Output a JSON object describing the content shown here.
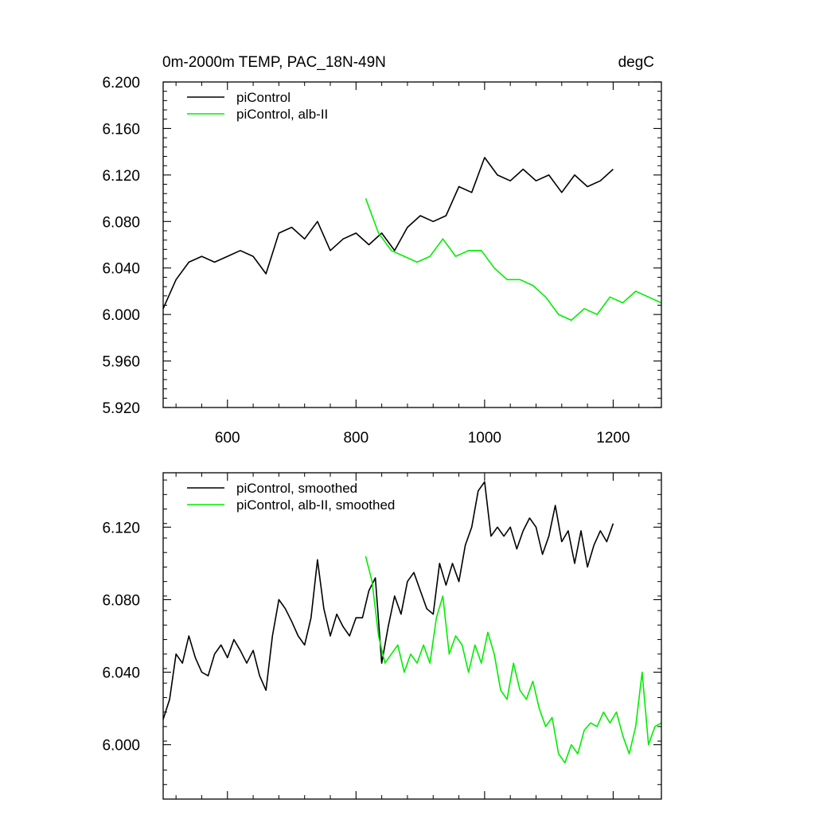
{
  "chart_data": [
    {
      "type": "line",
      "title_left": "0m-2000m TEMP, PAC_18N-49N",
      "title_right": "degC",
      "xlabel": "",
      "ylabel": "",
      "xlim": [
        500,
        1275
      ],
      "ylim": [
        5.92,
        6.2
      ],
      "xticks": [
        600,
        800,
        1000,
        1200
      ],
      "xtick_labels": [
        "600",
        "800",
        "1000",
        "1200"
      ],
      "yticks": [
        5.92,
        5.96,
        6.0,
        6.04,
        6.08,
        6.12,
        6.16,
        6.2
      ],
      "ytick_labels": [
        "5.920",
        "5.960",
        "6.000",
        "6.040",
        "6.080",
        "6.120",
        "6.160",
        "6.200"
      ],
      "grid": false,
      "legend_position": "top-left",
      "series": [
        {
          "name": "piControl",
          "color": "#000000",
          "x": [
            500,
            520,
            540,
            560,
            580,
            600,
            620,
            640,
            660,
            680,
            700,
            720,
            740,
            760,
            780,
            800,
            820,
            840,
            860,
            880,
            900,
            920,
            940,
            960,
            980,
            1000,
            1020,
            1040,
            1060,
            1080,
            1100,
            1120,
            1140,
            1160,
            1180,
            1200
          ],
          "values": [
            6.005,
            6.03,
            6.045,
            6.05,
            6.045,
            6.05,
            6.055,
            6.05,
            6.035,
            6.07,
            6.075,
            6.065,
            6.08,
            6.055,
            6.065,
            6.07,
            6.06,
            6.07,
            6.055,
            6.075,
            6.085,
            6.08,
            6.085,
            6.11,
            6.105,
            6.135,
            6.12,
            6.115,
            6.125,
            6.115,
            6.12,
            6.105,
            6.12,
            6.11,
            6.115,
            6.125
          ]
        },
        {
          "name": "piControl, alb-II",
          "color": "#00ee00",
          "x": [
            815,
            835,
            855,
            875,
            895,
            915,
            935,
            955,
            975,
            995,
            1015,
            1035,
            1055,
            1075,
            1095,
            1115,
            1135,
            1155,
            1175,
            1195,
            1215,
            1235,
            1255,
            1275
          ],
          "values": [
            6.1,
            6.07,
            6.055,
            6.05,
            6.045,
            6.05,
            6.065,
            6.05,
            6.055,
            6.055,
            6.04,
            6.03,
            6.03,
            6.025,
            6.015,
            6.0,
            5.995,
            6.005,
            6.0,
            6.015,
            6.01,
            6.02,
            6.015,
            6.01
          ]
        }
      ]
    },
    {
      "type": "line",
      "xlabel": "",
      "ylabel": "",
      "xlim": [
        500,
        1275
      ],
      "ylim": [
        5.97,
        6.15
      ],
      "xticks": [
        600,
        800,
        1000,
        1200
      ],
      "yticks": [
        6.0,
        6.04,
        6.08,
        6.12
      ],
      "ytick_labels": [
        "6.000",
        "6.040",
        "6.080",
        "6.120"
      ],
      "grid": false,
      "legend_position": "top-left",
      "series": [
        {
          "name": "piControl, smoothed",
          "color": "#000000",
          "x": [
            500,
            510,
            520,
            530,
            540,
            550,
            560,
            570,
            580,
            590,
            600,
            610,
            620,
            630,
            640,
            650,
            660,
            670,
            680,
            690,
            700,
            710,
            720,
            730,
            740,
            750,
            760,
            770,
            780,
            790,
            800,
            810,
            820,
            830,
            840,
            850,
            860,
            870,
            880,
            890,
            900,
            910,
            920,
            930,
            940,
            950,
            960,
            970,
            980,
            990,
            1000,
            1010,
            1020,
            1030,
            1040,
            1050,
            1060,
            1070,
            1080,
            1090,
            1100,
            1110,
            1120,
            1130,
            1140,
            1150,
            1160,
            1170,
            1180,
            1190,
            1200
          ],
          "values": [
            6.014,
            6.025,
            6.05,
            6.045,
            6.06,
            6.048,
            6.04,
            6.038,
            6.05,
            6.055,
            6.048,
            6.058,
            6.052,
            6.045,
            6.052,
            6.038,
            6.03,
            6.06,
            6.08,
            6.075,
            6.068,
            6.06,
            6.055,
            6.07,
            6.102,
            6.075,
            6.06,
            6.072,
            6.065,
            6.06,
            6.07,
            6.07,
            6.085,
            6.092,
            6.045,
            6.065,
            6.082,
            6.072,
            6.09,
            6.095,
            6.085,
            6.075,
            6.072,
            6.1,
            6.088,
            6.1,
            6.09,
            6.11,
            6.12,
            6.14,
            6.145,
            6.115,
            6.12,
            6.115,
            6.12,
            6.108,
            6.118,
            6.125,
            6.12,
            6.105,
            6.115,
            6.132,
            6.112,
            6.118,
            6.1,
            6.118,
            6.098,
            6.11,
            6.118,
            6.112,
            6.122
          ]
        },
        {
          "name": "piControl, alb-II, smoothed",
          "color": "#00ee00",
          "x": [
            815,
            825,
            835,
            845,
            855,
            865,
            875,
            885,
            895,
            905,
            915,
            925,
            935,
            945,
            955,
            965,
            975,
            985,
            995,
            1005,
            1015,
            1025,
            1035,
            1045,
            1055,
            1065,
            1075,
            1085,
            1095,
            1105,
            1115,
            1125,
            1135,
            1145,
            1155,
            1165,
            1175,
            1185,
            1195,
            1205,
            1215,
            1225,
            1235,
            1245,
            1255,
            1265,
            1275
          ],
          "values": [
            6.104,
            6.09,
            6.06,
            6.045,
            6.05,
            6.055,
            6.04,
            6.05,
            6.045,
            6.055,
            6.045,
            6.07,
            6.082,
            6.05,
            6.06,
            6.055,
            6.04,
            6.055,
            6.045,
            6.062,
            6.05,
            6.03,
            6.025,
            6.045,
            6.03,
            6.025,
            6.035,
            6.02,
            6.01,
            6.015,
            5.995,
            5.99,
            6.0,
            5.995,
            6.008,
            6.012,
            6.01,
            6.018,
            6.012,
            6.018,
            6.005,
            5.995,
            6.01,
            6.04,
            6.0,
            6.01,
            6.012
          ]
        }
      ]
    }
  ]
}
